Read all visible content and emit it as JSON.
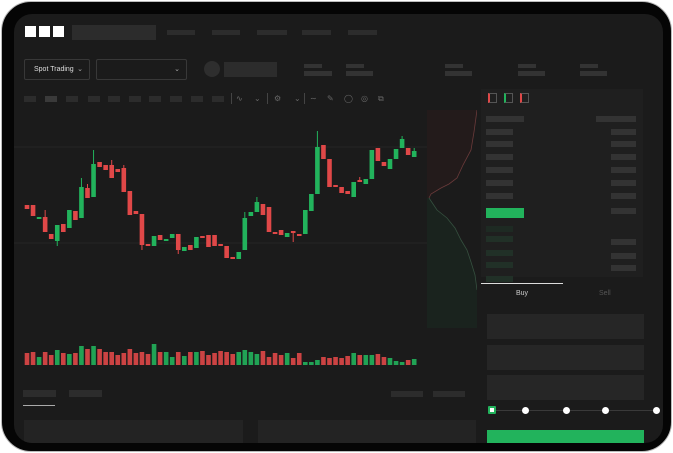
{
  "header": {
    "logo": "OKX"
  },
  "controls": {
    "market_dropdown": "Spot Trading",
    "pair_dropdown": ""
  },
  "trade": {
    "buy_tab": "Buy",
    "sell_tab": "Sell",
    "active_tab": "Buy",
    "leverage_slider_value": 0
  },
  "colors": {
    "up": "#22b35c",
    "down": "#e04848",
    "background": "#1b1b1b",
    "panel": "#1f1f1f"
  },
  "icons": [
    "chevron-down-icon",
    "indicator-icon",
    "bar-chart-icon",
    "pencil-icon",
    "camera-icon",
    "settings-icon",
    "fullscreen-icon",
    "orderbook-both-icon",
    "orderbook-bids-icon",
    "orderbook-asks-icon"
  ],
  "chart_data": {
    "type": "candlestick",
    "candles": [
      [
        97,
        93,
        97,
        93
      ],
      [
        97,
        86,
        97,
        86
      ],
      [
        83,
        85,
        85,
        83
      ],
      [
        85,
        70,
        92,
        70
      ],
      [
        68,
        63,
        68,
        63
      ],
      [
        61,
        77,
        77,
        56
      ],
      [
        78,
        70,
        78,
        70
      ],
      [
        74,
        92,
        92,
        74
      ],
      [
        91,
        82,
        91,
        82
      ],
      [
        84,
        115,
        124,
        84
      ],
      [
        114,
        104,
        118,
        104
      ],
      [
        105,
        138,
        152,
        105
      ],
      [
        140,
        135,
        140,
        135
      ],
      [
        137,
        132,
        137,
        132
      ],
      [
        137,
        124,
        142,
        124
      ],
      [
        133,
        130,
        133,
        130
      ],
      [
        134,
        110,
        137,
        110
      ],
      [
        111,
        87,
        111,
        87
      ],
      [
        91,
        88,
        91,
        88
      ],
      [
        88,
        57,
        88,
        52
      ],
      [
        58,
        56,
        58,
        56
      ],
      [
        56,
        66,
        66,
        56
      ],
      [
        67,
        62,
        67,
        62
      ],
      [
        61,
        63,
        63,
        61
      ],
      [
        64,
        68,
        68,
        64
      ],
      [
        68,
        52,
        68,
        48
      ],
      [
        51,
        55,
        55,
        51
      ],
      [
        57,
        52,
        57,
        52
      ],
      [
        54,
        65,
        65,
        54
      ],
      [
        66,
        64,
        66,
        64
      ],
      [
        67,
        55,
        67,
        55
      ],
      [
        67,
        56,
        67,
        56
      ],
      [
        58,
        57,
        58,
        57
      ],
      [
        56,
        44,
        56,
        44
      ],
      [
        45,
        43,
        45,
        43
      ],
      [
        43,
        50,
        50,
        43
      ],
      [
        52,
        84,
        90,
        52
      ],
      [
        86,
        90,
        90,
        86
      ],
      [
        90,
        100,
        105,
        90
      ],
      [
        98,
        87,
        98,
        87
      ],
      [
        95,
        70,
        95,
        70
      ],
      [
        70,
        68,
        70,
        68
      ],
      [
        72,
        67,
        72,
        67
      ],
      [
        65,
        69,
        69,
        65
      ],
      [
        71,
        69,
        71,
        60
      ],
      [
        68,
        66,
        68,
        66
      ],
      [
        68,
        92,
        92,
        68
      ],
      [
        91,
        108,
        108,
        91
      ],
      [
        108,
        155,
        171,
        108
      ],
      [
        157,
        143,
        157,
        143
      ],
      [
        143,
        115,
        143,
        115
      ],
      [
        117,
        116,
        117,
        116
      ],
      [
        115,
        109,
        115,
        109
      ],
      [
        111,
        108,
        111,
        108
      ],
      [
        105,
        120,
        120,
        105
      ],
      [
        122,
        121,
        125,
        121
      ],
      [
        118,
        123,
        123,
        118
      ],
      [
        123,
        152,
        152,
        123
      ],
      [
        154,
        141,
        154,
        141
      ],
      [
        140,
        136,
        140,
        136
      ],
      [
        133,
        143,
        143,
        133
      ],
      [
        143,
        153,
        153,
        143
      ],
      [
        154,
        163,
        166,
        154
      ],
      [
        154,
        147,
        154,
        147
      ],
      [
        145,
        151,
        154,
        145
      ]
    ],
    "volume": [
      12,
      13,
      8,
      13,
      10,
      15,
      12,
      11,
      12,
      19,
      16,
      19,
      16,
      13,
      13,
      10,
      12,
      16,
      12,
      13,
      11,
      21,
      13,
      13,
      8,
      13,
      9,
      13,
      13,
      14,
      10,
      12,
      14,
      13,
      11,
      13,
      15,
      13,
      11,
      14,
      8,
      12,
      10,
      12,
      7,
      12,
      3,
      3,
      5,
      8,
      7,
      8,
      7,
      9,
      12,
      10,
      10,
      10,
      11,
      8,
      7,
      4,
      3,
      5,
      6
    ]
  }
}
